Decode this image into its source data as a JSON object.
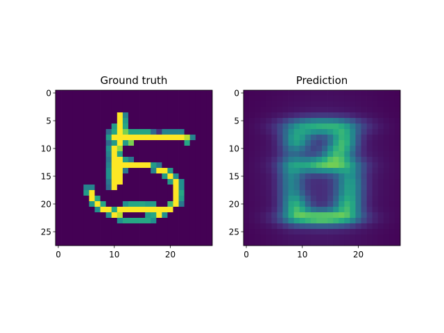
{
  "chart_data": [
    {
      "type": "heatmap",
      "title": "Ground truth",
      "colormap": "viridis",
      "grid": false,
      "shape": [
        28,
        28
      ],
      "xlim": [
        -0.5,
        27.5
      ],
      "ylim": [
        27.5,
        -0.5
      ],
      "xticks": [
        0,
        10,
        20
      ],
      "yticks": [
        0,
        5,
        10,
        15,
        20,
        25
      ],
      "value_range": [
        0,
        1
      ],
      "sparse_values": [
        [
          4,
          11,
          1.0
        ],
        [
          4,
          12,
          0.45
        ],
        [
          5,
          11,
          1.0
        ],
        [
          5,
          12,
          0.55
        ],
        [
          6,
          10,
          0.55
        ],
        [
          6,
          11,
          1.0
        ],
        [
          6,
          12,
          0.6
        ],
        [
          7,
          9,
          0.35
        ],
        [
          7,
          10,
          0.6
        ],
        [
          7,
          11,
          1.0
        ],
        [
          7,
          12,
          0.8
        ],
        [
          7,
          13,
          0.6
        ],
        [
          7,
          14,
          0.6
        ],
        [
          7,
          15,
          0.6
        ],
        [
          7,
          16,
          0.6
        ],
        [
          7,
          17,
          0.35
        ],
        [
          7,
          18,
          0.15
        ],
        [
          7,
          19,
          0.45
        ],
        [
          7,
          20,
          0.45
        ],
        [
          7,
          21,
          0.45
        ],
        [
          7,
          22,
          0.45
        ],
        [
          8,
          9,
          0.55
        ],
        [
          8,
          10,
          1.0
        ],
        [
          8,
          11,
          1.0
        ],
        [
          8,
          12,
          1.0
        ],
        [
          8,
          13,
          1.0
        ],
        [
          8,
          14,
          1.0
        ],
        [
          8,
          15,
          1.0
        ],
        [
          8,
          16,
          1.0
        ],
        [
          8,
          17,
          1.0
        ],
        [
          8,
          18,
          1.0
        ],
        [
          8,
          19,
          1.0
        ],
        [
          8,
          20,
          1.0
        ],
        [
          8,
          21,
          1.0
        ],
        [
          8,
          22,
          1.0
        ],
        [
          8,
          23,
          0.9
        ],
        [
          8,
          24,
          0.45
        ],
        [
          9,
          9,
          0.35
        ],
        [
          9,
          10,
          0.55
        ],
        [
          9,
          11,
          1.0
        ],
        [
          9,
          12,
          0.55
        ],
        [
          9,
          13,
          0.8
        ],
        [
          9,
          23,
          0.6
        ],
        [
          10,
          9,
          0.5
        ],
        [
          10,
          10,
          1.0
        ],
        [
          10,
          11,
          0.85
        ],
        [
          11,
          9,
          0.45
        ],
        [
          11,
          10,
          1.0
        ],
        [
          11,
          11,
          0.6
        ],
        [
          12,
          9,
          0.4
        ],
        [
          12,
          10,
          1.0
        ],
        [
          12,
          11,
          1.0
        ],
        [
          12,
          12,
          0.55
        ],
        [
          12,
          13,
          0.4
        ],
        [
          13,
          9,
          0.45
        ],
        [
          13,
          10,
          1.0
        ],
        [
          13,
          11,
          1.0
        ],
        [
          13,
          12,
          1.0
        ],
        [
          13,
          13,
          1.0
        ],
        [
          13,
          14,
          1.0
        ],
        [
          13,
          15,
          1.0
        ],
        [
          13,
          16,
          1.0
        ],
        [
          13,
          17,
          0.55
        ],
        [
          13,
          18,
          0.4
        ],
        [
          14,
          9,
          0.5
        ],
        [
          14,
          10,
          1.0
        ],
        [
          14,
          11,
          1.0
        ],
        [
          14,
          12,
          0.4
        ],
        [
          14,
          17,
          0.45
        ],
        [
          14,
          18,
          1.0
        ],
        [
          14,
          19,
          1.0
        ],
        [
          14,
          20,
          0.55
        ],
        [
          15,
          9,
          0.5
        ],
        [
          15,
          10,
          1.0
        ],
        [
          15,
          11,
          1.0
        ],
        [
          15,
          19,
          0.55
        ],
        [
          15,
          20,
          1.0
        ],
        [
          15,
          21,
          0.5
        ],
        [
          16,
          9,
          0.4
        ],
        [
          16,
          10,
          1.0
        ],
        [
          16,
          11,
          1.0
        ],
        [
          16,
          20,
          0.55
        ],
        [
          16,
          21,
          1.0
        ],
        [
          16,
          22,
          0.5
        ],
        [
          17,
          5,
          0.45
        ],
        [
          17,
          6,
          0.45
        ],
        [
          17,
          9,
          0.35
        ],
        [
          17,
          10,
          1.0
        ],
        [
          17,
          21,
          1.0
        ],
        [
          17,
          22,
          0.5
        ],
        [
          18,
          5,
          0.55
        ],
        [
          18,
          6,
          1.0
        ],
        [
          18,
          21,
          1.0
        ],
        [
          18,
          22,
          0.6
        ],
        [
          19,
          6,
          1.0
        ],
        [
          19,
          7,
          0.6
        ],
        [
          19,
          21,
          1.0
        ],
        [
          19,
          22,
          0.55
        ],
        [
          20,
          6,
          0.55
        ],
        [
          20,
          7,
          1.0
        ],
        [
          20,
          8,
          0.6
        ],
        [
          20,
          12,
          0.5
        ],
        [
          20,
          13,
          0.6
        ],
        [
          20,
          14,
          0.6
        ],
        [
          20,
          15,
          0.6
        ],
        [
          20,
          16,
          0.55
        ],
        [
          20,
          17,
          0.55
        ],
        [
          20,
          20,
          0.7
        ],
        [
          20,
          21,
          1.0
        ],
        [
          20,
          22,
          0.4
        ],
        [
          21,
          7,
          0.5
        ],
        [
          21,
          8,
          1.0
        ],
        [
          21,
          9,
          1.0
        ],
        [
          21,
          10,
          0.6
        ],
        [
          21,
          11,
          1.0
        ],
        [
          21,
          12,
          1.0
        ],
        [
          21,
          13,
          1.0
        ],
        [
          21,
          14,
          1.0
        ],
        [
          21,
          15,
          1.0
        ],
        [
          21,
          16,
          1.0
        ],
        [
          21,
          17,
          1.0
        ],
        [
          21,
          18,
          1.0
        ],
        [
          21,
          19,
          1.0
        ],
        [
          21,
          20,
          1.0
        ],
        [
          22,
          9,
          0.5
        ],
        [
          22,
          10,
          1.0
        ],
        [
          22,
          11,
          0.9
        ],
        [
          22,
          16,
          0.55
        ],
        [
          22,
          17,
          0.6
        ],
        [
          22,
          18,
          1.0
        ],
        [
          22,
          19,
          0.5
        ],
        [
          23,
          11,
          0.5
        ],
        [
          23,
          12,
          0.6
        ],
        [
          23,
          13,
          0.6
        ],
        [
          23,
          14,
          0.6
        ],
        [
          23,
          15,
          0.6
        ],
        [
          23,
          16,
          0.6
        ],
        [
          23,
          17,
          0.5
        ]
      ]
    },
    {
      "type": "heatmap",
      "title": "Prediction",
      "colormap": "viridis",
      "grid": false,
      "shape": [
        28,
        28
      ],
      "xlim": [
        -0.5,
        27.5
      ],
      "ylim": [
        27.5,
        -0.5
      ],
      "xticks": [
        0,
        10,
        20
      ],
      "yticks": [
        0,
        5,
        10,
        15,
        20,
        25
      ],
      "value_range": [
        0,
        1
      ],
      "blobs": [
        {
          "row": 6,
          "col": 13.5,
          "sr": 1.1,
          "sc": 4.5,
          "a": 0.55
        },
        {
          "row": 8.5,
          "col": 9,
          "sr": 1.5,
          "sc": 1.8,
          "a": 0.45
        },
        {
          "row": 8.5,
          "col": 17.5,
          "sr": 1.6,
          "sc": 1.7,
          "a": 0.5
        },
        {
          "row": 11,
          "col": 16,
          "sr": 1.4,
          "sc": 1.8,
          "a": 0.4
        },
        {
          "row": 13,
          "col": 13.5,
          "sr": 1.0,
          "sc": 4.0,
          "a": 0.55
        },
        {
          "row": 16.5,
          "col": 18.5,
          "sr": 2.6,
          "sc": 1.7,
          "a": 0.45
        },
        {
          "row": 16,
          "col": 8,
          "sr": 3.5,
          "sc": 1.5,
          "a": 0.35
        },
        {
          "row": 20.5,
          "col": 9,
          "sr": 1.5,
          "sc": 1.6,
          "a": 0.4
        },
        {
          "row": 20.5,
          "col": 18,
          "sr": 1.5,
          "sc": 1.7,
          "a": 0.4
        },
        {
          "row": 22.5,
          "col": 13.5,
          "sr": 1.0,
          "sc": 4.3,
          "a": 0.7
        },
        {
          "row": 15,
          "col": 13.5,
          "sr": 9.5,
          "sc": 7.5,
          "a": 0.13
        }
      ]
    }
  ]
}
